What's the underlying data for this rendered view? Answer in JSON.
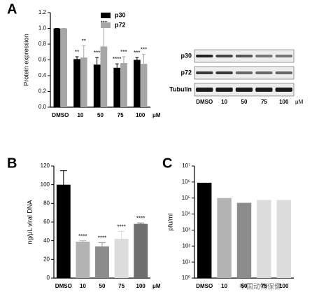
{
  "chart_data": [
    {
      "type": "grouped_bar",
      "panel_label": "A",
      "ylabel": "Protein expression",
      "categories": [
        "DMSO",
        "10",
        "50",
        "75",
        "100"
      ],
      "x_unit": "μM",
      "series": [
        {
          "name": "p30",
          "color": "#000000",
          "values": [
            1.0,
            0.61,
            0.54,
            0.5,
            0.6
          ],
          "errors": [
            0,
            0.03,
            0.09,
            0.05,
            0.03
          ],
          "significance": [
            null,
            "**",
            "***",
            "****",
            "***"
          ]
        },
        {
          "name": "p72",
          "color": "#a6a6a6",
          "values": [
            1.0,
            0.63,
            0.77,
            0.56,
            0.55
          ],
          "errors": [
            0,
            0.15,
            0.24,
            0.08,
            0.12
          ],
          "significance": [
            null,
            "**",
            "***",
            "***",
            "***"
          ]
        }
      ],
      "ylim": [
        0,
        1.2
      ],
      "yticks": [
        {
          "value": 0,
          "label": "0.0"
        },
        0.2,
        0.4,
        0.6,
        0.8,
        {
          "value": 1,
          "label": "1.0"
        },
        1.2
      ]
    },
    {
      "type": "bar",
      "panel_label": "B",
      "ylabel": "ng/μL viral DNA",
      "categories": [
        "DMSO",
        "10",
        "50",
        "75",
        "100"
      ],
      "x_unit": "μM",
      "values": [
        100,
        39,
        34,
        42,
        58
      ],
      "errors": [
        15,
        1,
        4,
        8,
        1
      ],
      "colors": [
        "#000000",
        "#b3b3b3",
        "#8c8c8c",
        "#dcdcdc",
        "#6e6e6e"
      ],
      "significance": [
        null,
        "****",
        "****",
        "****",
        "****"
      ],
      "ylim": [
        0,
        120
      ],
      "yticks": [
        0,
        20,
        40,
        60,
        80,
        100,
        120
      ]
    },
    {
      "type": "bar",
      "panel_label": "C",
      "ylabel": "pfu/ml",
      "log_scale": true,
      "categories": [
        "DMSO",
        "10",
        "50",
        "75",
        "100"
      ],
      "values": [
        900000,
        100000,
        50000,
        75000,
        75000
      ],
      "colors": [
        "#000000",
        "#b3b3b3",
        "#8c8c8c",
        "#dcdcdc",
        "#dcdcdc"
      ],
      "ylim": [
        1,
        10000000
      ],
      "yticks": [
        {
          "value": 1,
          "label": "10⁰"
        },
        {
          "value": 10,
          "label": "10¹"
        },
        {
          "value": 100,
          "label": "10²"
        },
        {
          "value": 1000,
          "label": "10³"
        },
        {
          "value": 10000,
          "label": "10⁴"
        },
        {
          "value": 100000,
          "label": "10⁵"
        },
        {
          "value": 1000000,
          "label": "10⁶"
        },
        {
          "value": 10000000,
          "label": "10⁷"
        }
      ]
    }
  ],
  "blot": {
    "rows": [
      "p30",
      "p72",
      "Tubulin"
    ],
    "lanes": [
      "DMSO",
      "10",
      "50",
      "75",
      "100"
    ],
    "unit": "μM"
  },
  "watermark": "中国动物保健"
}
